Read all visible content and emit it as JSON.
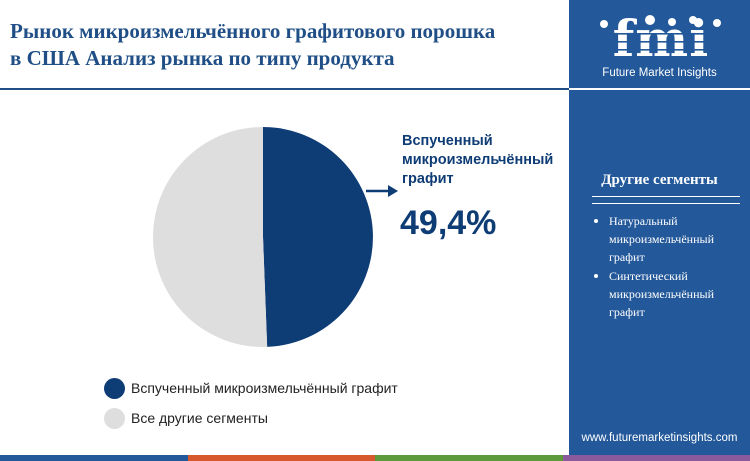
{
  "header": {
    "title_line1": "Рынок микроизмельчённого графитового порошка",
    "title_line2": "в США Анализ рынка по типу продукта"
  },
  "brand": {
    "logo_text": "fmi",
    "tagline": "Future Market Insights",
    "website": "www.futuremarketinsights.com"
  },
  "colors": {
    "primary": "#0e3c75",
    "panel": "#23589a",
    "other": "#dedede",
    "bar": [
      "#23589a",
      "#d8582e",
      "#5c9a3c",
      "#8a5a9c"
    ]
  },
  "sidebar": {
    "title": "Другие сегменты",
    "items": [
      {
        "label": "Натуральный микроизмельчённый графит"
      },
      {
        "label": "Синтетический микроизмельчённый графит"
      }
    ]
  },
  "callout": {
    "label": "Вспученный микроизмельчённый графит",
    "value": "49,4%"
  },
  "chart_data": {
    "type": "pie",
    "title": "Рынок микроизмельчённого графитового порошка в США Анализ рынка по типу продукта",
    "slices": [
      {
        "label": "Вспученный микроизмельчённый графит",
        "value": 49.4,
        "color": "#0e3c75"
      },
      {
        "label": "Все другие сегменты",
        "value": 50.6,
        "color": "#dedede"
      }
    ],
    "legend": [
      "Вспученный микроизмельчённый графит",
      "Все другие сегменты"
    ],
    "legend_position": "bottom"
  }
}
